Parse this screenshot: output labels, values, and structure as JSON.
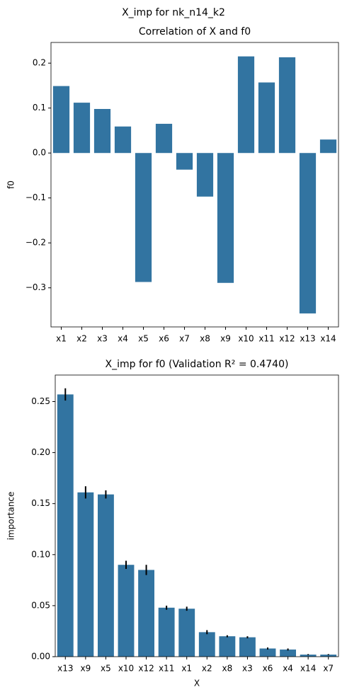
{
  "suptitle": "X_imp for nk_n14_k2",
  "chart_data": [
    {
      "type": "bar",
      "title": "Correlation of X and f0",
      "ylabel": "f0",
      "color": "#3274a1",
      "categories": [
        "x1",
        "x2",
        "x3",
        "x4",
        "x5",
        "x6",
        "x7",
        "x8",
        "x9",
        "x10",
        "x11",
        "x12",
        "x13",
        "x14"
      ],
      "values": [
        0.149,
        0.112,
        0.098,
        0.059,
        -0.287,
        0.065,
        -0.037,
        -0.097,
        -0.289,
        0.215,
        0.157,
        0.213,
        -0.357,
        0.03
      ],
      "ylim": [
        -0.387,
        0.246
      ],
      "yticks": [
        {
          "value": -0.3,
          "label": "−0.3"
        },
        {
          "value": -0.2,
          "label": "−0.2"
        },
        {
          "value": -0.1,
          "label": "−0.1"
        },
        {
          "value": 0,
          "label": "0.0"
        },
        0.1,
        0.2
      ]
    },
    {
      "type": "bar",
      "title": "X_imp for f0 (Validation R² = 0.4740)",
      "ylabel": "importance",
      "xlabel": "X",
      "color": "#3274a1",
      "error_color": "#000000",
      "categories": [
        "x13",
        "x9",
        "x5",
        "x10",
        "x12",
        "x11",
        "x1",
        "x2",
        "x8",
        "x3",
        "x6",
        "x4",
        "x14",
        "x7"
      ],
      "values": [
        0.257,
        0.161,
        0.159,
        0.09,
        0.085,
        0.048,
        0.047,
        0.024,
        0.02,
        0.019,
        0.008,
        0.007,
        0.002,
        0.002
      ],
      "errors": [
        0.006,
        0.006,
        0.004,
        0.004,
        0.005,
        0.002,
        0.002,
        0.002,
        0.001,
        0.001,
        0.001,
        0.001,
        0.0005,
        0.0005
      ],
      "ylim": [
        0,
        0.276
      ],
      "yticks": [
        {
          "value": 0,
          "label": "0.00"
        },
        {
          "value": 0.05,
          "label": "0.05"
        },
        {
          "value": 0.1,
          "label": "0.10"
        },
        {
          "value": 0.15,
          "label": "0.15"
        },
        {
          "value": 0.2,
          "label": "0.20"
        },
        {
          "value": 0.25,
          "label": "0.25"
        }
      ]
    }
  ]
}
